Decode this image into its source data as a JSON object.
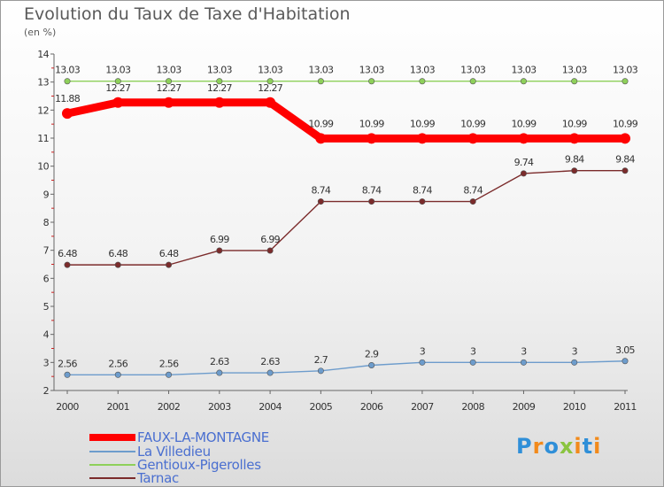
{
  "title": "Evolution du Taux de Taxe d'Habitation",
  "subtitle": "(en %)",
  "logo": {
    "letters": [
      {
        "ch": "P",
        "color": "#2f8fd8"
      },
      {
        "ch": "r",
        "color": "#f28a1b"
      },
      {
        "ch": "o",
        "color": "#2f8fd8"
      },
      {
        "ch": "x",
        "color": "#8ac43f"
      },
      {
        "ch": "i",
        "color": "#f28a1b"
      },
      {
        "ch": "t",
        "color": "#2f8fd8"
      },
      {
        "ch": "i",
        "color": "#f28a1b"
      }
    ]
  },
  "chart_data": {
    "type": "line",
    "title": "Evolution du Taux de Taxe d'Habitation",
    "ylabel": "(en %)",
    "xlabel": "",
    "x": [
      "2000",
      "2001",
      "2002",
      "2003",
      "2004",
      "2005",
      "2006",
      "2007",
      "2008",
      "2009",
      "2010",
      "2011"
    ],
    "ylim": [
      2,
      14
    ],
    "yticks": [
      "2",
      "3",
      "4",
      "5",
      "6",
      "7",
      "8",
      "9",
      "10",
      "11",
      "12",
      "13",
      "14"
    ],
    "grid": false,
    "legend_position": "bottom-left",
    "series": [
      {
        "name": "FAUX-LA-MONTAGNE",
        "color": "#ff0000",
        "values": [
          11.88,
          12.27,
          12.27,
          12.27,
          12.27,
          10.99,
          10.99,
          10.99,
          10.99,
          10.99,
          10.99,
          10.99
        ],
        "labels": [
          "11.88",
          "12.27",
          "12.27",
          "12.27",
          "12.27",
          "10.99",
          "10.99",
          "10.99",
          "10.99",
          "10.99",
          "10.99",
          "10.99"
        ]
      },
      {
        "name": "La Villedieu",
        "color": "#6d9ccc",
        "values": [
          2.56,
          2.56,
          2.56,
          2.63,
          2.63,
          2.7,
          2.9,
          3,
          3,
          3,
          3,
          3.05
        ],
        "labels": [
          "2.56",
          "2.56",
          "2.56",
          "2.63",
          "2.63",
          "2.7",
          "2.9",
          "3",
          "3",
          "3",
          "3",
          "3.05"
        ]
      },
      {
        "name": "Gentioux-Pigerolles",
        "color": "#8ed05a",
        "values": [
          13.03,
          13.03,
          13.03,
          13.03,
          13.03,
          13.03,
          13.03,
          13.03,
          13.03,
          13.03,
          13.03,
          13.03
        ],
        "labels": [
          "13.03",
          "13.03",
          "13.03",
          "13.03",
          "13.03",
          "13.03",
          "13.03",
          "13.03",
          "13.03",
          "13.03",
          "13.03",
          "13.03"
        ]
      },
      {
        "name": "Tarnac",
        "color": "#7b2b2b",
        "values": [
          6.48,
          6.48,
          6.48,
          6.99,
          6.99,
          8.74,
          8.74,
          8.74,
          8.74,
          9.74,
          9.84,
          9.84
        ],
        "labels": [
          "6.48",
          "6.48",
          "6.48",
          "6.99",
          "6.99",
          "8.74",
          "8.74",
          "8.74",
          "8.74",
          "9.74",
          "9.84",
          "9.84"
        ]
      }
    ]
  }
}
